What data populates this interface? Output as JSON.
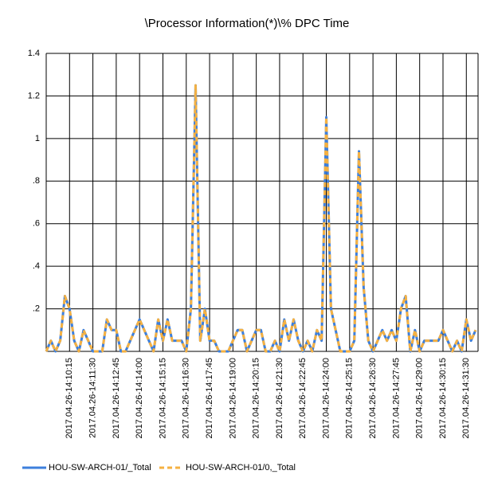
{
  "chart_data": {
    "type": "line",
    "title": "\\Processor Information(*)\\% DPC Time",
    "categories": [
      null,
      null,
      null,
      null,
      null,
      "2017.04.26-14:10:15",
      null,
      null,
      null,
      null,
      "2017.04.26-14:11:30",
      null,
      null,
      null,
      null,
      "2017.04.26-14:12:45",
      null,
      null,
      null,
      null,
      "2017.04.26-14:14:00",
      null,
      null,
      null,
      null,
      "2017.04.26-14:15:15",
      null,
      null,
      null,
      null,
      "2017.04.26-14:16:30",
      null,
      null,
      null,
      null,
      "2017.04.26-14:17:45",
      null,
      null,
      null,
      null,
      "2017.04.26-14:19:00",
      null,
      null,
      null,
      null,
      "2017.04.26-14:20:15",
      null,
      null,
      null,
      null,
      "2017.04.26-14:21:30",
      null,
      null,
      null,
      null,
      "2017.04.26-14:22:45",
      null,
      null,
      null,
      null,
      "2017.04.26-14:24:00",
      null,
      null,
      null,
      null,
      "2017.04.26-14:25:15",
      null,
      null,
      null,
      null,
      "2017.04.26-14:26:30",
      null,
      null,
      null,
      null,
      "2017.04.26-14:27:45",
      null,
      null,
      null,
      null,
      "2017.04.26-14:29:00",
      null,
      null,
      null,
      null,
      "2017.04.26-14:30:15",
      null,
      null,
      null,
      null,
      "2017.04.26-14:31:30",
      null,
      null
    ],
    "series": [
      {
        "name": "HOU-SW-ARCH-01/_Total",
        "color": "#3d7fdc",
        "dash": false,
        "values": [
          0,
          0.05,
          0,
          0.05,
          0.26,
          0.2,
          0.05,
          0,
          0.1,
          0.05,
          0,
          0,
          0,
          0.15,
          0.1,
          0.1,
          0,
          0,
          0.05,
          0.1,
          0.15,
          0.1,
          0.05,
          0,
          0.15,
          0.05,
          0.15,
          0.05,
          0.05,
          0.05,
          0,
          0.2,
          1.25,
          0.05,
          0.2,
          0.05,
          0.05,
          0,
          0,
          0,
          0.05,
          0.1,
          0.1,
          0,
          0.05,
          0.1,
          0.1,
          0,
          0,
          0.05,
          0,
          0.15,
          0.05,
          0.15,
          0.05,
          0,
          0.05,
          0,
          0.1,
          0.05,
          1.1,
          0.2,
          0.1,
          0,
          0,
          0,
          0.05,
          0.94,
          0.3,
          0.05,
          0,
          0.05,
          0.1,
          0.05,
          0.1,
          0.05,
          0.2,
          0.26,
          0,
          0.1,
          0,
          0.05,
          0.05,
          0.05,
          0.05,
          0.1,
          0.05,
          0,
          0.05,
          0,
          0.15,
          0.05,
          0.1
        ]
      },
      {
        "name": "HOU-SW-ARCH-01/0,_Total",
        "color": "#f5b142",
        "dash": true,
        "values": [
          0,
          0.05,
          0,
          0.05,
          0.26,
          0.2,
          0.05,
          0,
          0.1,
          0.05,
          0,
          0,
          0,
          0.15,
          0.1,
          0.1,
          0,
          0,
          0.05,
          0.1,
          0.15,
          0.1,
          0.05,
          0,
          0.15,
          0.05,
          0.15,
          0.05,
          0.05,
          0.05,
          0,
          0.2,
          1.25,
          0.05,
          0.2,
          0.05,
          0.05,
          0,
          0,
          0,
          0.05,
          0.1,
          0.1,
          0,
          0.05,
          0.1,
          0.1,
          0,
          0,
          0.05,
          0,
          0.15,
          0.05,
          0.15,
          0.05,
          0,
          0.05,
          0,
          0.1,
          0.05,
          1.1,
          0.2,
          0.1,
          0,
          0,
          0,
          0.05,
          0.94,
          0.3,
          0.05,
          0,
          0.05,
          0.1,
          0.05,
          0.1,
          0.05,
          0.2,
          0.26,
          0,
          0.1,
          0,
          0.05,
          0.05,
          0.05,
          0.05,
          0.1,
          0.05,
          0,
          0.05,
          0,
          0.15,
          0.05,
          0.1
        ]
      }
    ],
    "ylim": [
      0,
      1.4
    ],
    "yticks": [
      {
        "value": 0.2,
        "label": ".2"
      },
      {
        "value": 0.4,
        "label": ".4"
      },
      {
        "value": 0.6,
        "label": ".6"
      },
      {
        "value": 0.8,
        "label": ".8"
      },
      1,
      1.2,
      1.4
    ],
    "grid": true,
    "legend": "bottom"
  }
}
